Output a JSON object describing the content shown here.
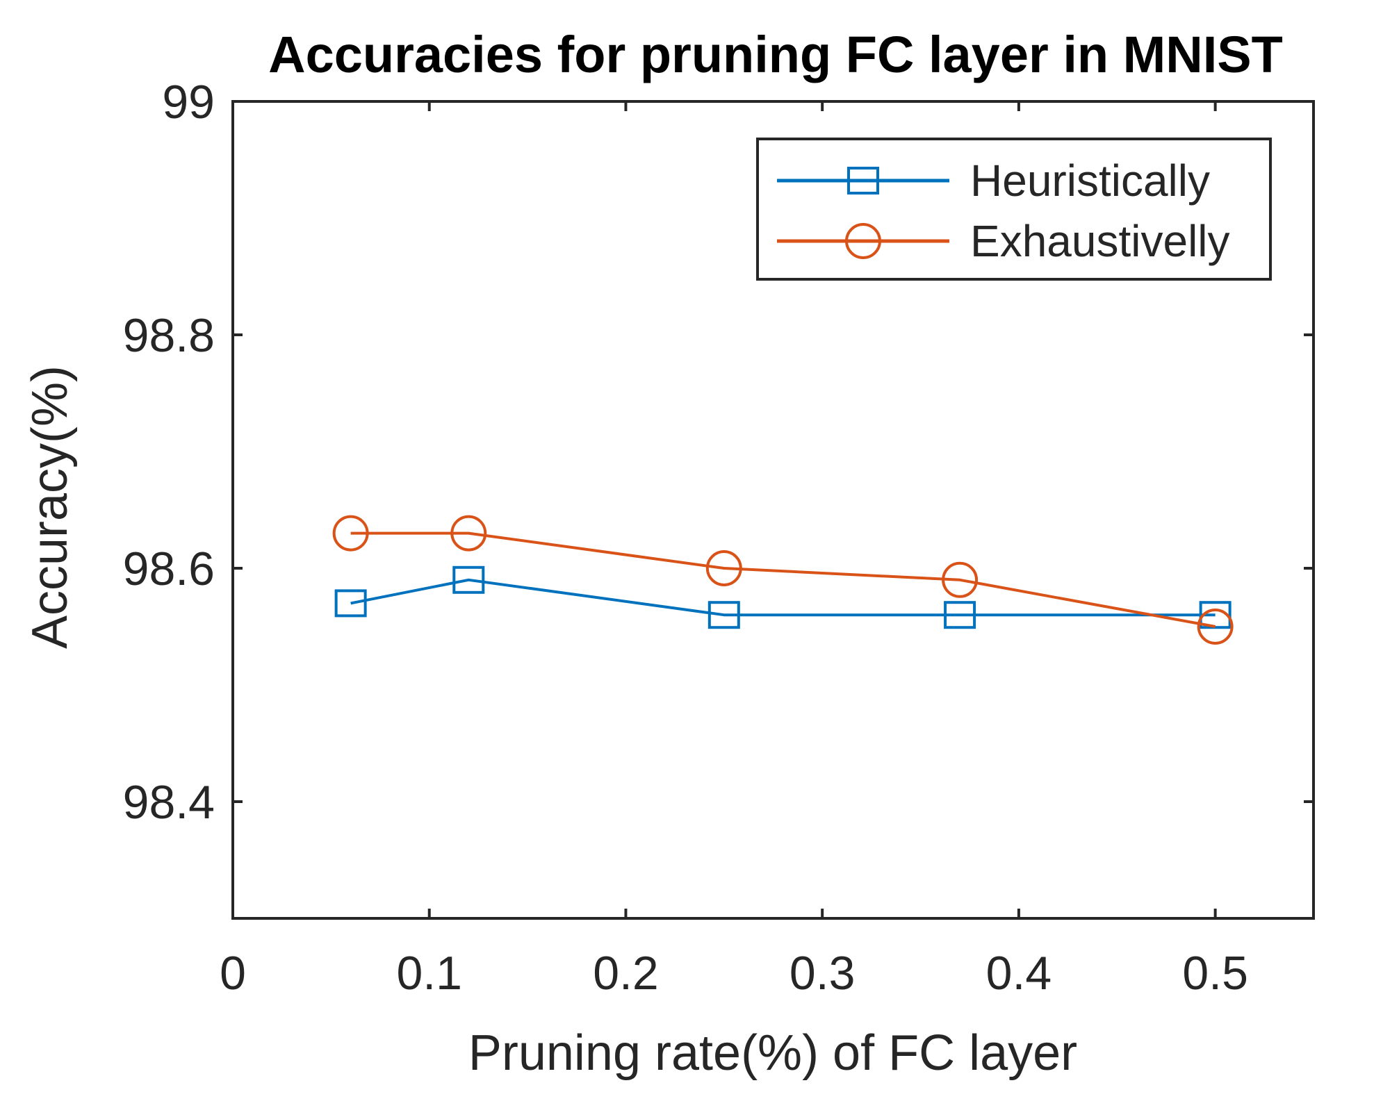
{
  "chart_data": {
    "type": "line",
    "title": "Accuracies for pruning FC layer in MNIST",
    "xlabel": "Pruning rate(%) of FC layer",
    "ylabel": "Accuracy(%)",
    "xlim": [
      0,
      0.55
    ],
    "ylim": [
      98.3,
      99
    ],
    "x_ticks": [
      0,
      0.1,
      0.2,
      0.3,
      0.4,
      0.5
    ],
    "x_tick_labels": [
      "0",
      "0.1",
      "0.2",
      "0.3",
      "0.4",
      "0.5"
    ],
    "y_ticks": [
      98.4,
      98.6,
      98.8,
      99
    ],
    "y_tick_labels": [
      "98.4",
      "98.6",
      "98.8",
      "99"
    ],
    "grid": false,
    "legend_position": "top-right",
    "series": [
      {
        "name": "Heuristically",
        "color": "#0072BD",
        "marker": "square",
        "x": [
          0.06,
          0.12,
          0.25,
          0.37,
          0.5
        ],
        "y": [
          98.57,
          98.59,
          98.56,
          98.56,
          98.56
        ]
      },
      {
        "name": "Exhaustivelly",
        "color": "#D95319",
        "marker": "circle",
        "x": [
          0.06,
          0.12,
          0.25,
          0.37,
          0.5
        ],
        "y": [
          98.63,
          98.63,
          98.6,
          98.59,
          98.55
        ]
      }
    ]
  }
}
